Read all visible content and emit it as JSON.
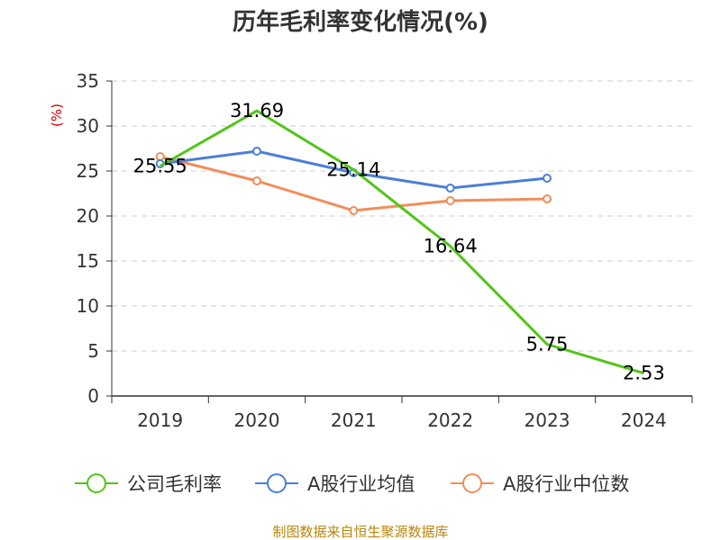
{
  "chart_data": {
    "type": "line",
    "title": "历年毛利率变化情况(%)",
    "ylabel": "(%)",
    "categories": [
      "2019",
      "2020",
      "2021",
      "2022",
      "2023",
      "2024"
    ],
    "ylim": [
      0,
      35
    ],
    "yticks": [
      "0",
      "5",
      "10",
      "15",
      "20",
      "25",
      "30",
      "35"
    ],
    "grid": true,
    "legend_position": "bottom",
    "series": [
      {
        "name": "公司毛利率",
        "color": "#52c41a",
        "marker": "none",
        "values": [
          25.55,
          31.69,
          25.14,
          16.64,
          5.75,
          2.53
        ],
        "labels": [
          "25.55",
          "31.69",
          "25.14",
          "16.64",
          "5.75",
          "2.53"
        ]
      },
      {
        "name": "A股行业均值",
        "color": "#4a7fd9",
        "marker": "circle",
        "values": [
          25.8,
          27.2,
          24.8,
          23.1,
          24.2,
          null
        ]
      },
      {
        "name": "A股行业中位数",
        "color": "#f28c5a",
        "marker": "circle",
        "values": [
          26.6,
          23.9,
          20.6,
          21.7,
          21.9,
          null
        ]
      }
    ],
    "source": "制图数据来自恒生聚源数据库"
  }
}
